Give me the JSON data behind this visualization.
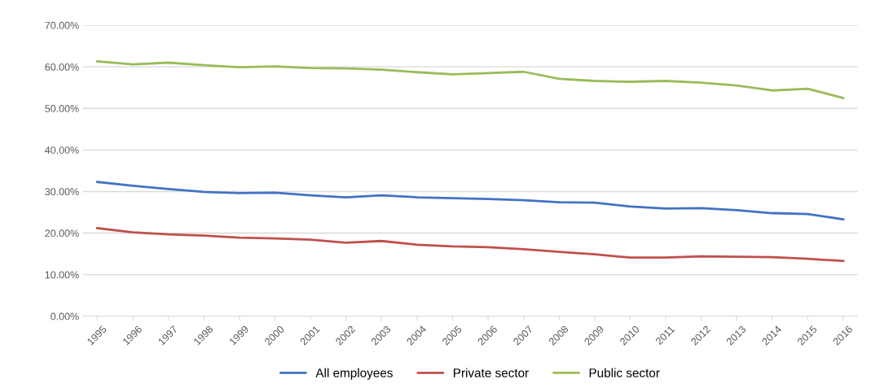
{
  "chart_data": {
    "type": "line",
    "categories": [
      "1995",
      "1996",
      "1997",
      "1998",
      "1999",
      "2000",
      "2001",
      "2002",
      "2003",
      "2004",
      "2005",
      "2006",
      "2007",
      "2008",
      "2009",
      "2010",
      "2011",
      "2012",
      "2013",
      "2014",
      "2015",
      "2016"
    ],
    "series": [
      {
        "name": "All employees",
        "color": "#4472c4",
        "values": [
          32.3,
          31.4,
          30.6,
          29.9,
          29.6,
          29.7,
          29.1,
          28.6,
          29.1,
          28.6,
          28.4,
          28.2,
          27.9,
          27.4,
          27.3,
          26.4,
          25.9,
          26.0,
          25.5,
          24.8,
          24.6,
          23.3
        ]
      },
      {
        "name": "Private sector",
        "color": "#c0504d",
        "values": [
          21.2,
          20.2,
          19.7,
          19.4,
          18.9,
          18.7,
          18.4,
          17.7,
          18.1,
          17.2,
          16.8,
          16.6,
          16.1,
          15.5,
          14.9,
          14.1,
          14.1,
          14.4,
          14.3,
          14.2,
          13.8,
          13.3
        ]
      },
      {
        "name": "Public sector",
        "color": "#9bbb59",
        "values": [
          61.3,
          60.6,
          61.0,
          60.4,
          59.9,
          60.1,
          59.7,
          59.6,
          59.3,
          58.7,
          58.2,
          58.5,
          58.8,
          57.1,
          56.6,
          56.4,
          56.6,
          56.2,
          55.5,
          54.3,
          54.7,
          52.5
        ]
      }
    ],
    "ylim": [
      0,
      70
    ],
    "yticks": [
      {
        "value": 0,
        "label": "0.00%"
      },
      {
        "value": 10,
        "label": "10.00%"
      },
      {
        "value": 20,
        "label": "20.00%"
      },
      {
        "value": 30,
        "label": "30.00%"
      },
      {
        "value": 40,
        "label": "40.00%"
      },
      {
        "value": 50,
        "label": "50.00%"
      },
      {
        "value": 60,
        "label": "60.00%"
      },
      {
        "value": 70,
        "label": "70.00%"
      }
    ],
    "grid": "y",
    "legend": "bottom",
    "marker": "none",
    "line_style": "solid"
  }
}
